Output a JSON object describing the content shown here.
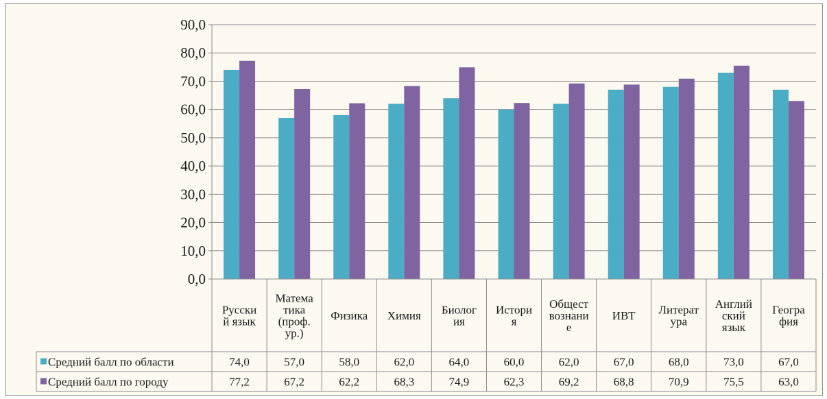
{
  "chart_data": {
    "type": "bar",
    "categories": [
      [
        "Русски",
        "й язык"
      ],
      [
        "Матема",
        "тика",
        "(проф.",
        "ур.)"
      ],
      [
        "Физика"
      ],
      [
        "Химия"
      ],
      [
        "Биолог",
        "ия"
      ],
      [
        "Истори",
        "я"
      ],
      [
        "Общест",
        "вознани",
        "е"
      ],
      [
        "ИВТ"
      ],
      [
        "Литерат",
        "ура"
      ],
      [
        "Англий",
        "ский",
        "язык"
      ],
      [
        "Геогра",
        "фия"
      ]
    ],
    "series": [
      {
        "name": "Средний балл по области",
        "color": "#4bacc6",
        "values": [
          74.0,
          57.0,
          58.0,
          62.0,
          64.0,
          60.0,
          62.0,
          67.0,
          68.0,
          73.0,
          67.0
        ],
        "labels": [
          "74,0",
          "57,0",
          "58,0",
          "62,0",
          "64,0",
          "60,0",
          "62,0",
          "67,0",
          "68,0",
          "73,0",
          "67,0"
        ]
      },
      {
        "name": "Средний балл по городу",
        "color": "#8064a2",
        "values": [
          77.2,
          67.2,
          62.2,
          68.3,
          74.9,
          62.3,
          69.2,
          68.8,
          70.9,
          75.5,
          63.0
        ],
        "labels": [
          "77,2",
          "67,2",
          "62,2",
          "68,3",
          "74,9",
          "62,3",
          "69,2",
          "68,8",
          "70,9",
          "75,5",
          "63,0"
        ]
      }
    ],
    "ylim": [
      0,
      90
    ],
    "yticks": [
      "0,0",
      "10,0",
      "20,0",
      "30,0",
      "40,0",
      "50,0",
      "60,0",
      "70,0",
      "80,0",
      "90,0"
    ],
    "grid": true,
    "legend": "data table below chart"
  }
}
